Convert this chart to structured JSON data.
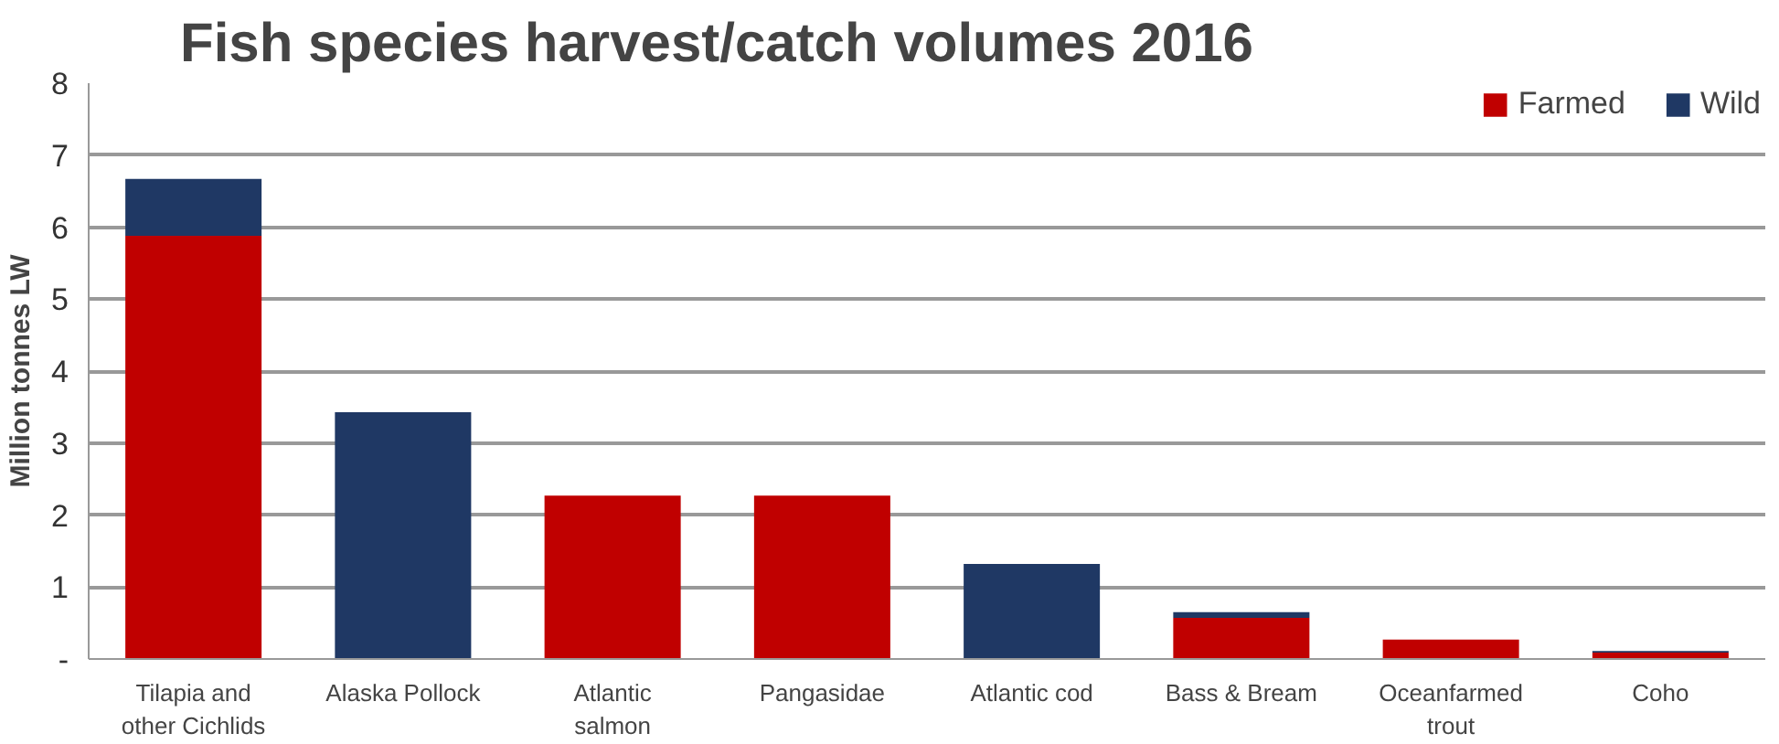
{
  "chart_data": {
    "type": "bar",
    "stacked": true,
    "title": "Fish species harvest/catch volumes 2016",
    "ylabel": "Million tonnes LW",
    "categories": [
      "Tilapia and other Cichlids",
      "Alaska Pollock",
      "Atlantic salmon",
      "Pangasidae",
      "Atlantic cod",
      "Bass & Bream",
      "Oceanfarmed trout",
      "Coho"
    ],
    "series": [
      {
        "name": "Farmed",
        "color": "#c00000",
        "values": [
          5.88,
          0,
          2.27,
          2.27,
          0,
          0.57,
          0.27,
          0.09
        ]
      },
      {
        "name": "Wild",
        "color": "#1f3864",
        "values": [
          0.79,
          3.43,
          0,
          0,
          1.32,
          0.08,
          0,
          0.02
        ]
      }
    ],
    "ylim": [
      0,
      8
    ],
    "yticks": [
      {
        "value": 0,
        "label": "-"
      },
      1,
      2,
      3,
      4,
      5,
      6,
      7,
      8
    ],
    "grid": "y",
    "legend": "top right"
  }
}
